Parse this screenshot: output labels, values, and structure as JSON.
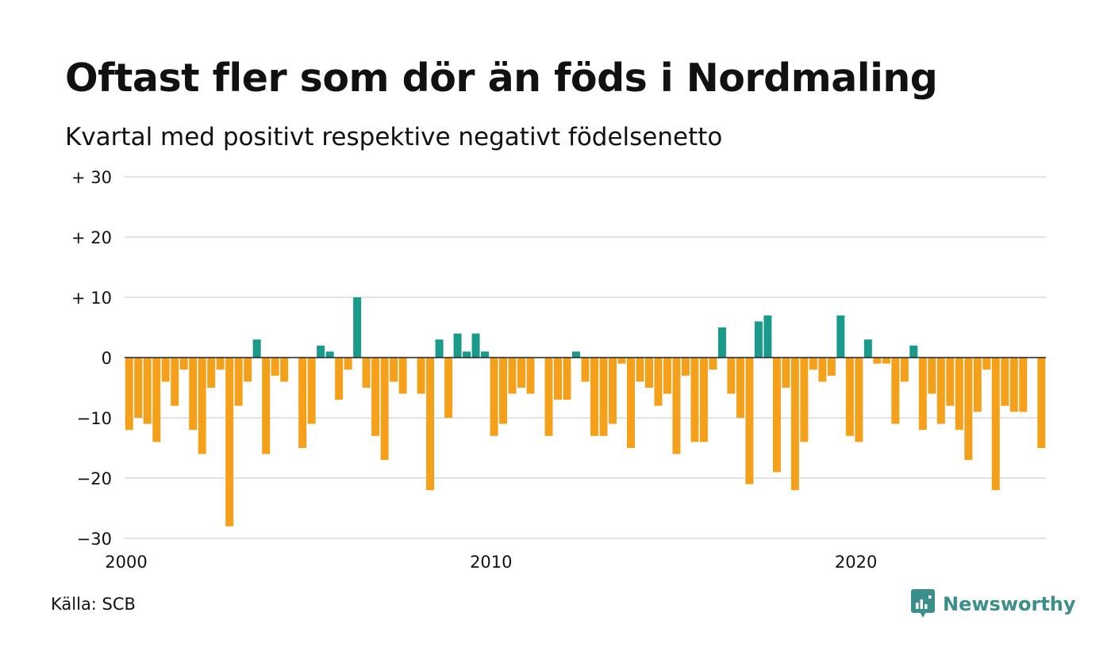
{
  "title": "Oftast fler som dör än föds i Nordmaling",
  "subtitle": "Kvartal med positivt respektive negativt födelsenetto",
  "source": "Källa: SCB",
  "brand": {
    "name": "Newsworthy",
    "icon": "newsworthy-logo-icon"
  },
  "colors": {
    "positive": "#1a9a8a",
    "negative": "#f5a01a",
    "grid": "#e2e2e2",
    "zero": "#222222",
    "brand": "#3a8f8a"
  },
  "chart_data": {
    "type": "bar",
    "title": "Oftast fler som dör än föds i Nordmaling",
    "subtitle": "Kvartal med positivt respektive negativt födelsenetto",
    "xlabel": "",
    "ylabel": "",
    "ylim": [
      -30,
      30
    ],
    "yticks": [
      {
        "value": 30,
        "label": "+ 30"
      },
      {
        "value": 20,
        "label": "+ 20"
      },
      {
        "value": 10,
        "label": "+ 10"
      },
      {
        "value": 0,
        "label": "0"
      },
      {
        "value": -10,
        "label": "−10"
      },
      {
        "value": -20,
        "label": "−20"
      },
      {
        "value": -30,
        "label": "−30"
      }
    ],
    "xticks": [
      {
        "value": 2000,
        "label": "2000"
      },
      {
        "value": 2010,
        "label": "2010"
      },
      {
        "value": 2020,
        "label": "2020"
      }
    ],
    "x_range": [
      2000,
      2025.25
    ],
    "start_year": 2000,
    "grid": true,
    "legend": "none",
    "categories": [
      "2000 K1",
      "2000 K2",
      "2000 K3",
      "2000 K4",
      "2001 K1",
      "2001 K2",
      "2001 K3",
      "2001 K4",
      "2002 K1",
      "2002 K2",
      "2002 K3",
      "2002 K4",
      "2003 K1",
      "2003 K2",
      "2003 K3",
      "2003 K4",
      "2004 K1",
      "2004 K2",
      "2004 K3",
      "2004 K4",
      "2005 K1",
      "2005 K2",
      "2005 K3",
      "2005 K4",
      "2006 K1",
      "2006 K2",
      "2006 K3",
      "2006 K4",
      "2007 K1",
      "2007 K2",
      "2007 K3",
      "2007 K4",
      "2008 K1",
      "2008 K2",
      "2008 K3",
      "2008 K4",
      "2009 K1",
      "2009 K2",
      "2009 K3",
      "2009 K4",
      "2010 K1",
      "2010 K2",
      "2010 K3",
      "2010 K4",
      "2011 K1",
      "2011 K2",
      "2011 K3",
      "2011 K4",
      "2012 K1",
      "2012 K2",
      "2012 K3",
      "2012 K4",
      "2013 K1",
      "2013 K2",
      "2013 K3",
      "2013 K4",
      "2014 K1",
      "2014 K2",
      "2014 K3",
      "2014 K4",
      "2015 K1",
      "2015 K2",
      "2015 K3",
      "2015 K4",
      "2016 K1",
      "2016 K2",
      "2016 K3",
      "2016 K4",
      "2017 K1",
      "2017 K2",
      "2017 K3",
      "2017 K4",
      "2018 K1",
      "2018 K2",
      "2018 K3",
      "2018 K4",
      "2019 K1",
      "2019 K2",
      "2019 K3",
      "2019 K4",
      "2020 K1",
      "2020 K2",
      "2020 K3",
      "2020 K4",
      "2021 K1",
      "2021 K2",
      "2021 K3",
      "2021 K4",
      "2022 K1",
      "2022 K2",
      "2022 K3",
      "2022 K4",
      "2023 K1",
      "2023 K2",
      "2023 K3",
      "2023 K4",
      "2024 K1",
      "2024 K2",
      "2024 K3",
      "2024 K4",
      "2025 K1"
    ],
    "values": [
      -12,
      -10,
      -11,
      -14,
      -4,
      -8,
      -2,
      -12,
      -16,
      -5,
      -2,
      -28,
      -8,
      -4,
      3,
      -16,
      -3,
      -4,
      0,
      -15,
      -11,
      2,
      1,
      -7,
      -2,
      10,
      -5,
      -13,
      -17,
      -4,
      -6,
      0,
      -6,
      -22,
      3,
      -10,
      4,
      1,
      4,
      1,
      -13,
      -11,
      -6,
      -5,
      -6,
      0,
      -13,
      -7,
      -7,
      1,
      -4,
      -13,
      -13,
      -11,
      -1,
      -15,
      -4,
      -5,
      -8,
      -6,
      -16,
      -3,
      -14,
      -14,
      -2,
      5,
      -6,
      -10,
      -21,
      6,
      7,
      -19,
      -5,
      -22,
      -14,
      -2,
      -4,
      -3,
      7,
      -13,
      -14,
      3,
      -1,
      -1,
      -11,
      -4,
      2,
      -12,
      -6,
      -11,
      -8,
      -12,
      -17,
      -9,
      -2,
      -22,
      -8,
      -9,
      -9,
      0,
      -15
    ]
  }
}
